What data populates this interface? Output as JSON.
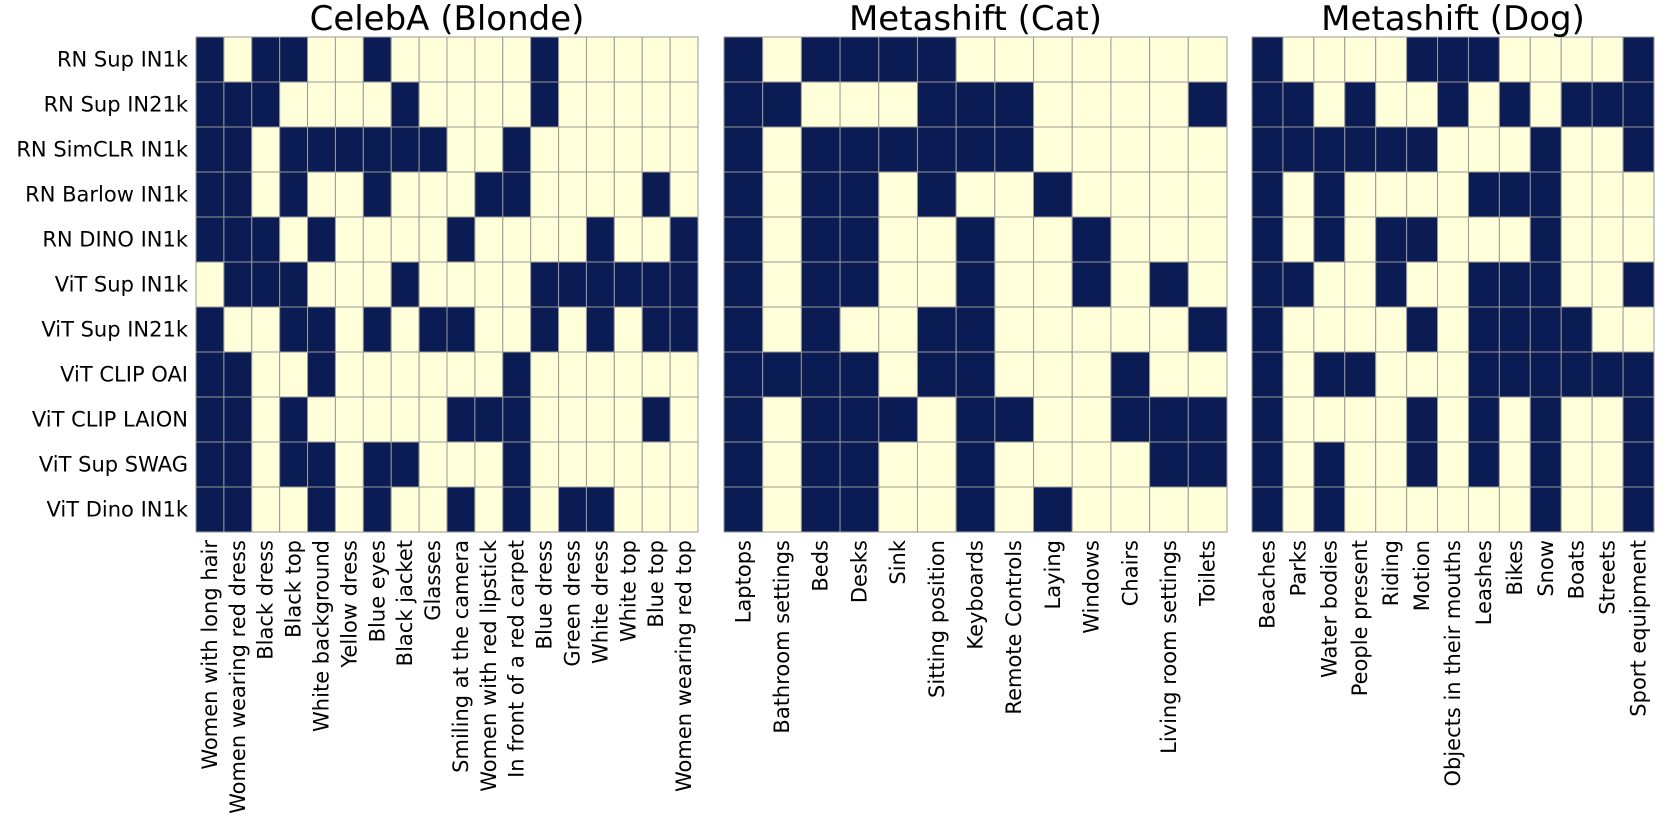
{
  "colors": {
    "on": "#0b1b54",
    "off": "#ffffd9"
  },
  "chart_data": [
    {
      "type": "heatmap",
      "title": "CelebA (Blonde)",
      "rows": [
        "RN Sup IN1k",
        "RN Sup IN21k",
        "RN SimCLR IN1k",
        "RN Barlow IN1k",
        "RN DINO IN1k",
        "ViT Sup IN1k",
        "ViT Sup IN21k",
        "ViT CLIP OAI",
        "ViT CLIP LAION",
        "ViT Sup SWAG",
        "ViT Dino IN1k"
      ],
      "columns": [
        "Women with long hair",
        "Women wearing red dress",
        "Black dress",
        "Black top",
        "White background",
        "Yellow dress",
        "Blue eyes",
        "Black jacket",
        "Glasses",
        "Smiling at the camera",
        "Women with red lipstick",
        "In front of a red carpet",
        "Blue dress",
        "Green dress",
        "White dress",
        "White top",
        "Blue top",
        "Women wearing red top"
      ],
      "values": [
        [
          1,
          0,
          1,
          1,
          0,
          0,
          1,
          0,
          0,
          0,
          0,
          0,
          1,
          0,
          0,
          0,
          0,
          0
        ],
        [
          1,
          1,
          1,
          0,
          0,
          0,
          0,
          1,
          0,
          0,
          0,
          0,
          1,
          0,
          0,
          0,
          0,
          0
        ],
        [
          1,
          1,
          0,
          1,
          1,
          1,
          1,
          1,
          1,
          0,
          0,
          1,
          0,
          0,
          0,
          0,
          0,
          0
        ],
        [
          1,
          1,
          0,
          1,
          0,
          0,
          1,
          0,
          0,
          0,
          1,
          1,
          0,
          0,
          0,
          0,
          1,
          0
        ],
        [
          1,
          1,
          1,
          0,
          1,
          0,
          0,
          0,
          0,
          1,
          0,
          0,
          0,
          0,
          1,
          0,
          0,
          1
        ],
        [
          0,
          1,
          1,
          1,
          0,
          0,
          0,
          1,
          0,
          0,
          0,
          0,
          1,
          1,
          1,
          1,
          1,
          1
        ],
        [
          1,
          0,
          0,
          1,
          1,
          0,
          1,
          0,
          1,
          1,
          0,
          0,
          1,
          0,
          1,
          0,
          1,
          1
        ],
        [
          1,
          1,
          0,
          0,
          1,
          0,
          0,
          0,
          0,
          0,
          0,
          1,
          0,
          0,
          0,
          0,
          0,
          0
        ],
        [
          1,
          1,
          0,
          1,
          0,
          0,
          0,
          0,
          0,
          1,
          1,
          1,
          0,
          0,
          0,
          0,
          1,
          0
        ],
        [
          1,
          1,
          0,
          1,
          1,
          0,
          1,
          1,
          0,
          0,
          0,
          1,
          0,
          0,
          0,
          0,
          0,
          0
        ],
        [
          1,
          1,
          0,
          0,
          1,
          0,
          1,
          0,
          0,
          1,
          0,
          1,
          0,
          1,
          1,
          0,
          0,
          0
        ]
      ]
    },
    {
      "type": "heatmap",
      "title": "Metashift (Cat)",
      "rows": [],
      "columns": [
        "Laptops",
        "Bathroom settings",
        "Beds",
        "Desks",
        "Sink",
        "Sitting position",
        "Keyboards",
        "Remote Controls",
        "Laying",
        "Windows",
        "Chairs",
        "Living room settings",
        "Toilets"
      ],
      "values": [
        [
          1,
          0,
          1,
          1,
          1,
          1,
          0,
          0,
          0,
          0,
          0,
          0,
          0
        ],
        [
          1,
          1,
          0,
          0,
          0,
          1,
          1,
          1,
          0,
          0,
          0,
          0,
          1
        ],
        [
          1,
          0,
          1,
          1,
          1,
          1,
          1,
          1,
          0,
          0,
          0,
          0,
          0
        ],
        [
          1,
          0,
          1,
          1,
          0,
          1,
          0,
          0,
          1,
          0,
          0,
          0,
          0
        ],
        [
          1,
          0,
          1,
          1,
          0,
          0,
          1,
          0,
          0,
          1,
          0,
          0,
          0
        ],
        [
          1,
          0,
          1,
          1,
          0,
          0,
          1,
          0,
          0,
          1,
          0,
          1,
          0
        ],
        [
          1,
          0,
          1,
          0,
          0,
          1,
          1,
          0,
          0,
          0,
          0,
          0,
          1
        ],
        [
          1,
          1,
          1,
          1,
          0,
          1,
          1,
          0,
          0,
          0,
          1,
          0,
          0
        ],
        [
          1,
          0,
          1,
          1,
          1,
          0,
          1,
          1,
          0,
          0,
          1,
          1,
          1
        ],
        [
          1,
          0,
          1,
          1,
          0,
          0,
          1,
          0,
          0,
          0,
          0,
          1,
          1
        ],
        [
          1,
          0,
          1,
          1,
          0,
          0,
          1,
          0,
          1,
          0,
          0,
          0,
          0
        ]
      ]
    },
    {
      "type": "heatmap",
      "title": "Metashift (Dog)",
      "rows": [],
      "columns": [
        "Beaches",
        "Parks",
        "Water bodies",
        "People present",
        "Riding",
        "Motion",
        "Objects in their mouths",
        "Leashes",
        "Bikes",
        "Snow",
        "Boats",
        "Streets",
        "Sport equipment"
      ],
      "values": [
        [
          1,
          0,
          0,
          0,
          0,
          1,
          1,
          1,
          0,
          0,
          0,
          0,
          1
        ],
        [
          1,
          1,
          0,
          1,
          0,
          0,
          1,
          0,
          1,
          0,
          1,
          1,
          1
        ],
        [
          1,
          1,
          1,
          1,
          1,
          1,
          0,
          0,
          0,
          1,
          0,
          0,
          1
        ],
        [
          1,
          0,
          1,
          0,
          0,
          0,
          0,
          1,
          1,
          1,
          0,
          0,
          0
        ],
        [
          1,
          0,
          1,
          0,
          1,
          1,
          0,
          0,
          0,
          1,
          0,
          0,
          0
        ],
        [
          1,
          1,
          0,
          0,
          1,
          0,
          0,
          1,
          1,
          1,
          0,
          0,
          1
        ],
        [
          1,
          0,
          0,
          0,
          0,
          1,
          0,
          1,
          1,
          1,
          1,
          0,
          0
        ],
        [
          1,
          0,
          1,
          1,
          0,
          0,
          0,
          1,
          1,
          1,
          1,
          1,
          1
        ],
        [
          1,
          0,
          0,
          0,
          0,
          1,
          0,
          1,
          0,
          1,
          0,
          0,
          1
        ],
        [
          1,
          0,
          1,
          0,
          0,
          1,
          0,
          1,
          0,
          1,
          0,
          0,
          1
        ],
        [
          1,
          0,
          1,
          0,
          0,
          0,
          0,
          0,
          0,
          1,
          0,
          0,
          1
        ]
      ]
    }
  ]
}
